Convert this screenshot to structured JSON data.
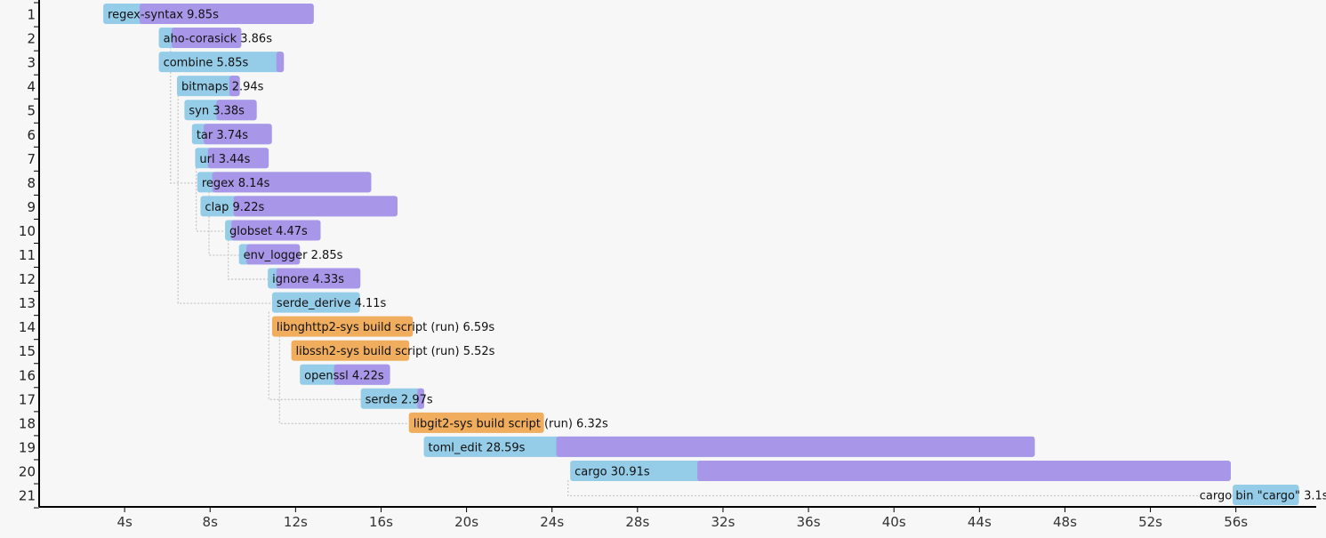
{
  "chart_data": {
    "type": "bar",
    "title": "",
    "xlabel": "",
    "ylabel": "",
    "xlim": [
      0,
      59.2
    ],
    "x_ticks": [
      "4s",
      "8s",
      "12s",
      "16s",
      "20s",
      "24s",
      "28s",
      "32s",
      "36s",
      "40s",
      "44s",
      "48s",
      "52s",
      "56s"
    ],
    "x_tick_values": [
      4,
      8,
      12,
      16,
      20,
      24,
      28,
      32,
      36,
      40,
      44,
      48,
      52,
      56
    ],
    "colors": {
      "frontend": "#95cde9",
      "codegen": "#a896e8",
      "build_script": "#f0ad5d",
      "dep_line": "#c8c8c8"
    },
    "units": [
      {
        "row": "1",
        "label": "regex-syntax 9.85s",
        "start": 3.0,
        "duration": 9.85,
        "codegen_start": 4.7,
        "kind": "crate"
      },
      {
        "row": "2",
        "label": "aho-corasick 3.86s",
        "start": 5.6,
        "duration": 3.86,
        "codegen_start": 6.2,
        "kind": "crate"
      },
      {
        "row": "3",
        "label": "combine 5.85s",
        "start": 5.6,
        "duration": 5.85,
        "codegen_start": 11.1,
        "kind": "crate"
      },
      {
        "row": "4",
        "label": "bitmaps 2.94s",
        "start": 6.45,
        "duration": 2.94,
        "codegen_start": 8.9,
        "kind": "crate"
      },
      {
        "row": "5",
        "label": "syn 3.38s",
        "start": 6.8,
        "duration": 3.38,
        "codegen_start": 8.3,
        "kind": "crate"
      },
      {
        "row": "6",
        "label": "tar 3.74s",
        "start": 7.15,
        "duration": 3.74,
        "codegen_start": 7.7,
        "kind": "crate"
      },
      {
        "row": "7",
        "label": "url 3.44s",
        "start": 7.3,
        "duration": 3.44,
        "codegen_start": 7.9,
        "kind": "crate"
      },
      {
        "row": "8",
        "label": "regex 8.14s",
        "start": 7.4,
        "duration": 8.14,
        "codegen_start": 8.1,
        "kind": "crate"
      },
      {
        "row": "9",
        "label": "clap 9.22s",
        "start": 7.55,
        "duration": 9.22,
        "codegen_start": 9.1,
        "kind": "crate"
      },
      {
        "row": "10",
        "label": "globset 4.47s",
        "start": 8.7,
        "duration": 4.47,
        "codegen_start": 9.0,
        "kind": "crate"
      },
      {
        "row": "11",
        "label": "env_logger 2.85s",
        "start": 9.35,
        "duration": 2.85,
        "codegen_start": 9.7,
        "kind": "crate"
      },
      {
        "row": "12",
        "label": "ignore 4.33s",
        "start": 10.7,
        "duration": 4.33,
        "codegen_start": 11.1,
        "kind": "crate"
      },
      {
        "row": "13",
        "label": "serde_derive 4.11s",
        "start": 10.9,
        "duration": 4.11,
        "codegen_start": 15.1,
        "kind": "crate"
      },
      {
        "row": "14",
        "label": "libnghttp2-sys build script (run) 6.59s",
        "start": 10.9,
        "duration": 6.59,
        "codegen_start": null,
        "kind": "build_script"
      },
      {
        "row": "15",
        "label": "libssh2-sys build script (run) 5.52s",
        "start": 11.8,
        "duration": 5.52,
        "codegen_start": null,
        "kind": "build_script"
      },
      {
        "row": "16",
        "label": "openssl 4.22s",
        "start": 12.2,
        "duration": 4.22,
        "codegen_start": 13.8,
        "kind": "crate"
      },
      {
        "row": "17",
        "label": "serde 2.97s",
        "start": 15.05,
        "duration": 2.97,
        "codegen_start": 17.7,
        "kind": "crate"
      },
      {
        "row": "18",
        "label": "libgit2-sys build script (run) 6.32s",
        "start": 17.3,
        "duration": 6.32,
        "codegen_start": null,
        "kind": "build_script"
      },
      {
        "row": "19",
        "label": "toml_edit 28.59s",
        "start": 18.0,
        "duration": 28.59,
        "codegen_start": 24.2,
        "kind": "crate"
      },
      {
        "row": "20",
        "label": "cargo 30.91s",
        "start": 24.85,
        "duration": 30.91,
        "codegen_start": 30.8,
        "kind": "crate"
      },
      {
        "row": "21",
        "label": "cargo bin \"cargo\" 3.1s",
        "start": 55.85,
        "duration": 3.1,
        "codegen_start": null,
        "kind": "crate",
        "label_left": true
      }
    ],
    "dependency_lines": [
      {
        "x": 6.15,
        "from_row": 2,
        "to_row": 8
      },
      {
        "x": 6.5,
        "from_row": 4,
        "to_row": 13
      },
      {
        "x": 7.35,
        "from_row": 7,
        "to_row": 10
      },
      {
        "x": 7.95,
        "from_row": 8,
        "to_row": 11
      },
      {
        "x": 8.85,
        "from_row": 10,
        "to_row": 12
      },
      {
        "x": 10.75,
        "from_row": 13,
        "to_row": 17
      },
      {
        "x": 11.25,
        "from_row": 14,
        "to_row": 18
      },
      {
        "x": 24.75,
        "from_row": 20,
        "to_row": 21
      }
    ]
  }
}
